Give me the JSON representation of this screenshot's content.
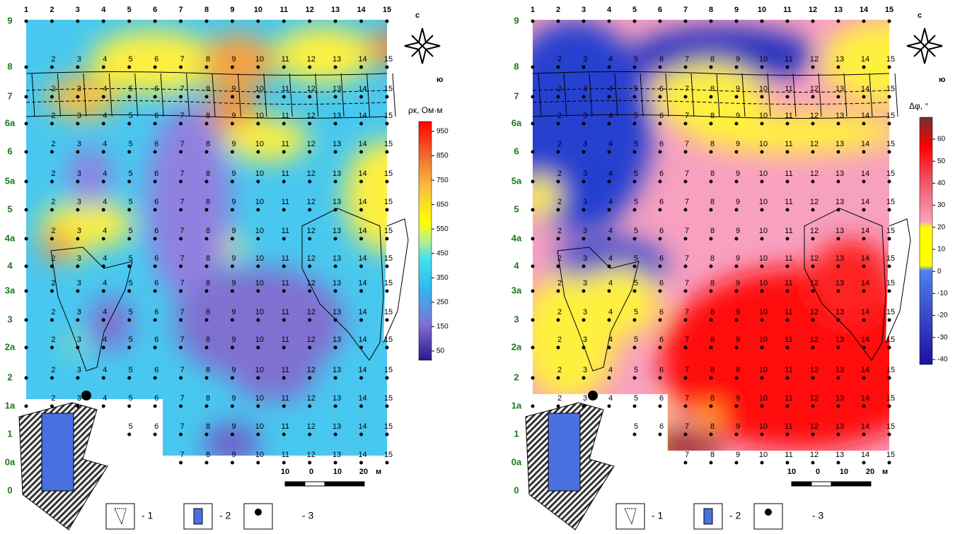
{
  "panels": [
    {
      "column_labels": [
        "1",
        "2",
        "3",
        "4",
        "5",
        "6",
        "7",
        "8",
        "9",
        "10",
        "11",
        "12",
        "13",
        "14",
        "15"
      ],
      "row_labels": [
        "9",
        "8",
        "7",
        "6a",
        "6",
        "5a",
        "5",
        "4a",
        "4",
        "3a",
        "3",
        "2a",
        "2",
        "1a",
        "1",
        "0a",
        "0"
      ],
      "compass": {
        "north": "с",
        "south": "ю"
      },
      "colorbar": {
        "title": "ρк, Ом·м",
        "ticks": [
          50,
          150,
          250,
          350,
          450,
          550,
          650,
          750,
          850,
          950
        ]
      },
      "scale": {
        "labels": [
          "10",
          "0",
          "10",
          "20"
        ],
        "unit": "м"
      },
      "legend": [
        "- 1",
        "- 2",
        "- 3"
      ]
    },
    {
      "column_labels": [
        "1",
        "2",
        "3",
        "4",
        "5",
        "6",
        "7",
        "8",
        "9",
        "10",
        "11",
        "12",
        "13",
        "14",
        "15"
      ],
      "row_labels": [
        "9",
        "8",
        "7",
        "6a",
        "6",
        "5a",
        "5",
        "4a",
        "4",
        "3a",
        "3",
        "2a",
        "2",
        "1a",
        "1",
        "0a",
        "0"
      ],
      "compass": {
        "north": "с",
        "south": "ю"
      },
      "colorbar": {
        "title": "Δφ, °",
        "ticks": [
          -40,
          -30,
          -20,
          -10,
          0,
          10,
          20,
          30,
          40,
          50,
          60
        ]
      },
      "scale": {
        "labels": [
          "10",
          "0",
          "10",
          "20"
        ],
        "unit": "м"
      },
      "legend": [
        "- 1",
        "- 2",
        "- 3"
      ]
    }
  ]
}
